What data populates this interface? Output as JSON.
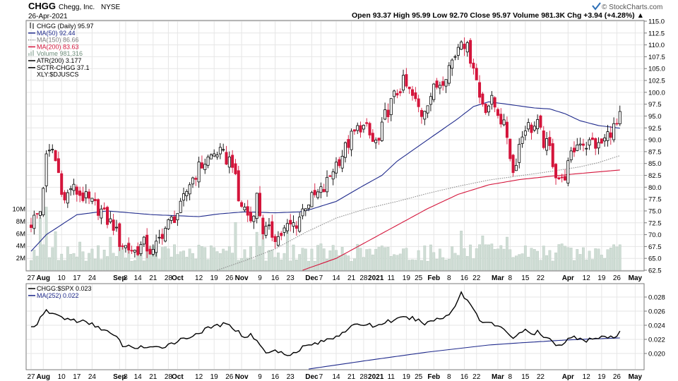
{
  "header": {
    "symbol": "CHGG",
    "company": "Chegg, Inc.",
    "exchange": "NYSE",
    "date": "26-Apr-2021",
    "brand": "© StockCharts.com",
    "quote": "Open 93.37  High 95.99  Low 92.70  Close 95.97  Volume 981.3K  Chg +3.94 (+4.28%) ▲"
  },
  "colors": {
    "up": "#000000",
    "down": "#d4153b",
    "ma50": "#1f2a8c",
    "ma150": "#8c8c8c",
    "ma200": "#d4153b",
    "volume": "#cfddd5",
    "rs": "#000000",
    "rs_ma": "#1f2a8c",
    "grid": "#e6e6e6",
    "border": "#7a7a7a"
  },
  "icons": {
    "brand": "stockcharts-checkmark-icon"
  },
  "legend": [
    {
      "text": "CHGG (Daily) 95.97",
      "icon": "candle-icon",
      "color": "#000000"
    },
    {
      "text": "MA(50) 92.44",
      "icon": "line-icon",
      "color": "#1f2a8c"
    },
    {
      "text": "MA(150) 86.66",
      "icon": "dotted-line-icon",
      "color": "#8c8c8c"
    },
    {
      "text": "MA(200) 83.63",
      "icon": "line-icon",
      "color": "#d4153b"
    },
    {
      "text": "Volume 981,316",
      "icon": "volume-bars-icon",
      "color": "#b9c9c0"
    },
    {
      "text": "ATR(200) 3.177",
      "icon": "line-icon",
      "color": "#000000"
    },
    {
      "text": "SCTR-CHGG 37.1",
      "icon": "line-icon",
      "color": "#000000"
    },
    {
      "text": "XLY:$DJUSCS",
      "icon": "",
      "color": "#000000"
    }
  ],
  "lower_legend": [
    {
      "text": "CHGG:$SPX 0.023",
      "icon": "line-icon",
      "color": "#000000"
    },
    {
      "text": "MA(252) 0.022",
      "icon": "line-icon",
      "color": "#1f2a8c"
    }
  ],
  "chart_data": [
    {
      "type": "candlestick",
      "title": "CHGG (Daily)",
      "ylim": [
        62.5,
        115.0
      ],
      "y_ticks": [
        "115.0",
        "112.5",
        "110.0",
        "107.5",
        "105.0",
        "102.5",
        "100.0",
        "97.5",
        "95.0",
        "92.5",
        "90.0",
        "87.5",
        "85.0",
        "82.5",
        "80.0",
        "77.5",
        "75.0",
        "72.5",
        "70.0",
        "67.5",
        "65.0",
        "62.5"
      ],
      "volume_ticks": [
        "10M",
        "8M",
        "6M",
        "4M",
        "2M"
      ],
      "volume_ylim": [
        0,
        13
      ],
      "x_ticks": [
        {
          "label": "27",
          "day": 0
        },
        {
          "label": "Aug",
          "day": 4,
          "bold": true
        },
        {
          "label": "10",
          "day": 10
        },
        {
          "label": "17",
          "day": 15
        },
        {
          "label": "24",
          "day": 20
        },
        {
          "label": "Sep",
          "day": 29,
          "bold": true
        },
        {
          "label": "8",
          "day": 31
        },
        {
          "label": "14",
          "day": 35
        },
        {
          "label": "21",
          "day": 40
        },
        {
          "label": "28",
          "day": 45
        },
        {
          "label": "Oct",
          "day": 48,
          "bold": true
        },
        {
          "label": "12",
          "day": 55
        },
        {
          "label": "19",
          "day": 60
        },
        {
          "label": "26",
          "day": 65
        },
        {
          "label": "Nov",
          "day": 69,
          "bold": true
        },
        {
          "label": "9",
          "day": 75
        },
        {
          "label": "16",
          "day": 80
        },
        {
          "label": "23",
          "day": 85
        },
        {
          "label": "Dec",
          "day": 92,
          "bold": true
        },
        {
          "label": "7",
          "day": 95
        },
        {
          "label": "14",
          "day": 100
        },
        {
          "label": "21",
          "day": 105
        },
        {
          "label": "28",
          "day": 109
        },
        {
          "label": "2021",
          "day": 113,
          "bold": true
        },
        {
          "label": "11",
          "day": 118
        },
        {
          "label": "19",
          "day": 123
        },
        {
          "label": "25",
          "day": 127
        },
        {
          "label": "Feb",
          "day": 132,
          "bold": true
        },
        {
          "label": "8",
          "day": 137
        },
        {
          "label": "16",
          "day": 142
        },
        {
          "label": "22",
          "day": 146
        },
        {
          "label": "Mar",
          "day": 153,
          "bold": true
        },
        {
          "label": "8",
          "day": 157
        },
        {
          "label": "15",
          "day": 162
        },
        {
          "label": "22",
          "day": 167
        },
        {
          "label": "Apr",
          "day": 176,
          "bold": true
        },
        {
          "label": "12",
          "day": 182
        },
        {
          "label": "19",
          "day": 187
        },
        {
          "label": "26",
          "day": 192
        },
        {
          "label": "May",
          "day": 198,
          "bold": true
        }
      ],
      "close_keyframes": [
        [
          0,
          72.5
        ],
        [
          3,
          75
        ],
        [
          5,
          86
        ],
        [
          7,
          88
        ],
        [
          9,
          83
        ],
        [
          11,
          77
        ],
        [
          13,
          80
        ],
        [
          15,
          79
        ],
        [
          17,
          78
        ],
        [
          20,
          76.5
        ],
        [
          23,
          75
        ],
        [
          25,
          73
        ],
        [
          27,
          72
        ],
        [
          29,
          68.5
        ],
        [
          31,
          67.5
        ],
        [
          34,
          66.5
        ],
        [
          37,
          68
        ],
        [
          40,
          66
        ],
        [
          43,
          70.5
        ],
        [
          46,
          73
        ],
        [
          49,
          75.5
        ],
        [
          52,
          81
        ],
        [
          55,
          84
        ],
        [
          58,
          86
        ],
        [
          61,
          87.5
        ],
        [
          64,
          86
        ],
        [
          66,
          85.5
        ],
        [
          68,
          77
        ],
        [
          70,
          75.5
        ],
        [
          72,
          73
        ],
        [
          74,
          78
        ],
        [
          76,
          71
        ],
        [
          78,
          70.5
        ],
        [
          81,
          69.5
        ],
        [
          84,
          71.5
        ],
        [
          87,
          72.5
        ],
        [
          90,
          76.5
        ],
        [
          93,
          78
        ],
        [
          96,
          79.5
        ],
        [
          99,
          84
        ],
        [
          102,
          87
        ],
        [
          105,
          90.5
        ],
        [
          108,
          93
        ],
        [
          110,
          92
        ],
        [
          112,
          89.5
        ],
        [
          114,
          89.5
        ],
        [
          116,
          95
        ],
        [
          119,
          99
        ],
        [
          122,
          102
        ],
        [
          125,
          99
        ],
        [
          128,
          95.5
        ],
        [
          130,
          98.5
        ],
        [
          132,
          100.5
        ],
        [
          135,
          103
        ],
        [
          137,
          105.5
        ],
        [
          139,
          108
        ],
        [
          141,
          112
        ],
        [
          143,
          109
        ],
        [
          145,
          106
        ],
        [
          147,
          99
        ],
        [
          149,
          97
        ],
        [
          151,
          98
        ],
        [
          153,
          96
        ],
        [
          156,
          91
        ],
        [
          158,
          83
        ],
        [
          160,
          89
        ],
        [
          162,
          93
        ],
        [
          164,
          92.5
        ],
        [
          166,
          93
        ],
        [
          168,
          89.5
        ],
        [
          170,
          88
        ],
        [
          172,
          83
        ],
        [
          174,
          81
        ],
        [
          176,
          84.5
        ],
        [
          178,
          88
        ],
        [
          180,
          90
        ],
        [
          182,
          89
        ],
        [
          184,
          89.5
        ],
        [
          186,
          88.5
        ],
        [
          188,
          90
        ],
        [
          190,
          92
        ],
        [
          192,
          93
        ],
        [
          193,
          95.97
        ]
      ],
      "vol_avg_millions": 3.2,
      "volume_spikes": [
        {
          "day": 3,
          "m": 8.5
        },
        {
          "day": 5,
          "m": 10.3
        },
        {
          "day": 8,
          "m": 6.3
        },
        {
          "day": 16,
          "m": 4.6
        },
        {
          "day": 26,
          "m": 5.4
        },
        {
          "day": 29,
          "m": 7.3
        },
        {
          "day": 32,
          "m": 4.5
        },
        {
          "day": 67,
          "m": 7.8
        },
        {
          "day": 74,
          "m": 6.2
        },
        {
          "day": 76,
          "m": 7.2
        },
        {
          "day": 84,
          "m": 6.9
        },
        {
          "day": 141,
          "m": 6.4
        },
        {
          "day": 148,
          "m": 5.6
        },
        {
          "day": 156,
          "m": 5.4
        },
        {
          "day": 173,
          "m": 4.2
        }
      ],
      "ma50_keyframes": [
        [
          0,
          66.5
        ],
        [
          5,
          70
        ],
        [
          15,
          74.2
        ],
        [
          25,
          75
        ],
        [
          40,
          74.2
        ],
        [
          55,
          73.8
        ],
        [
          62,
          74.4
        ],
        [
          70,
          74.8
        ],
        [
          80,
          74.6
        ],
        [
          88,
          74.8
        ],
        [
          92,
          75.4
        ],
        [
          100,
          77
        ],
        [
          108,
          80
        ],
        [
          115,
          82.5
        ],
        [
          120,
          85.5
        ],
        [
          130,
          90
        ],
        [
          140,
          94.5
        ],
        [
          145,
          97
        ],
        [
          150,
          98
        ],
        [
          156,
          97.5
        ],
        [
          165,
          96.7
        ],
        [
          170,
          96.5
        ],
        [
          175,
          95.5
        ],
        [
          180,
          94
        ],
        [
          186,
          93
        ],
        [
          193,
          92.44
        ]
      ],
      "ma150_keyframes": [
        [
          61,
          62.5
        ],
        [
          70,
          64.5
        ],
        [
          80,
          67
        ],
        [
          90,
          70.5
        ],
        [
          100,
          73.5
        ],
        [
          110,
          75.5
        ],
        [
          120,
          77
        ],
        [
          130,
          78.7
        ],
        [
          140,
          80.2
        ],
        [
          150,
          81.5
        ],
        [
          160,
          82.4
        ],
        [
          170,
          83.3
        ],
        [
          180,
          84.3
        ],
        [
          186,
          85.2
        ],
        [
          193,
          86.66
        ]
      ],
      "ma200_keyframes": [
        [
          89,
          62.5
        ],
        [
          100,
          65
        ],
        [
          110,
          68.5
        ],
        [
          120,
          72
        ],
        [
          130,
          75.5
        ],
        [
          140,
          78.5
        ],
        [
          150,
          80.5
        ],
        [
          160,
          81.6
        ],
        [
          170,
          82.3
        ],
        [
          180,
          82.9
        ],
        [
          193,
          83.63
        ]
      ]
    },
    {
      "type": "line",
      "title": "CHGG:$SPX",
      "ylim": [
        0.0178,
        0.0298
      ],
      "y_ticks": [
        "0.028",
        "0.026",
        "0.024",
        "0.022",
        "0.020"
      ],
      "series": [
        {
          "name": "CHGG:$SPX",
          "keyframes": [
            [
              0,
              0.0237
            ],
            [
              2,
              0.0243
            ],
            [
              5,
              0.026
            ],
            [
              8,
              0.0255
            ],
            [
              11,
              0.025
            ],
            [
              14,
              0.0247
            ],
            [
              17,
              0.0245
            ],
            [
              20,
              0.0241
            ],
            [
              23,
              0.0236
            ],
            [
              26,
              0.0228
            ],
            [
              28,
              0.0222
            ],
            [
              30,
              0.0212
            ],
            [
              33,
              0.0208
            ],
            [
              36,
              0.021
            ],
            [
              39,
              0.0207
            ],
            [
              42,
              0.0208
            ],
            [
              45,
              0.0213
            ],
            [
              48,
              0.0218
            ],
            [
              51,
              0.0222
            ],
            [
              54,
              0.0228
            ],
            [
              57,
              0.0233
            ],
            [
              60,
              0.0239
            ],
            [
              63,
              0.0241
            ],
            [
              66,
              0.0238
            ],
            [
              68,
              0.023
            ],
            [
              70,
              0.0224
            ],
            [
              72,
              0.0226
            ],
            [
              74,
              0.022
            ],
            [
              76,
              0.0205
            ],
            [
              78,
              0.02
            ],
            [
              80,
              0.0205
            ],
            [
              83,
              0.0199
            ],
            [
              86,
              0.0201
            ],
            [
              89,
              0.0209
            ],
            [
              92,
              0.0213
            ],
            [
              95,
              0.0216
            ],
            [
              98,
              0.0221
            ],
            [
              101,
              0.0227
            ],
            [
              104,
              0.0236
            ],
            [
              107,
              0.024
            ],
            [
              110,
              0.0242
            ],
            [
              113,
              0.0238
            ],
            [
              116,
              0.0245
            ],
            [
              119,
              0.0247
            ],
            [
              122,
              0.025
            ],
            [
              125,
              0.025
            ],
            [
              128,
              0.0244
            ],
            [
              130,
              0.0243
            ],
            [
              132,
              0.0248
            ],
            [
              135,
              0.025
            ],
            [
              137,
              0.0257
            ],
            [
              139,
              0.0268
            ],
            [
              141,
              0.0286
            ],
            [
              143,
              0.0275
            ],
            [
              145,
              0.0264
            ],
            [
              147,
              0.0248
            ],
            [
              150,
              0.0244
            ],
            [
              153,
              0.0238
            ],
            [
              156,
              0.0231
            ],
            [
              158,
              0.0222
            ],
            [
              160,
              0.023
            ],
            [
              162,
              0.0232
            ],
            [
              164,
              0.0227
            ],
            [
              166,
              0.023
            ],
            [
              168,
              0.0223
            ],
            [
              170,
              0.0219
            ],
            [
              172,
              0.0214
            ],
            [
              174,
              0.0213
            ],
            [
              176,
              0.022
            ],
            [
              178,
              0.0223
            ],
            [
              180,
              0.0222
            ],
            [
              182,
              0.0219
            ],
            [
              184,
              0.0222
            ],
            [
              186,
              0.022
            ],
            [
              188,
              0.0224
            ],
            [
              190,
              0.0222
            ],
            [
              192,
              0.0223
            ],
            [
              193,
              0.023
            ]
          ]
        },
        {
          "name": "MA(252)",
          "keyframes": [
            [
              91,
              0.0178
            ],
            [
              110,
              0.019
            ],
            [
              130,
              0.0202
            ],
            [
              150,
              0.0212
            ],
            [
              160,
              0.0215
            ],
            [
              175,
              0.0219
            ],
            [
              186,
              0.0221
            ],
            [
              193,
              0.0222
            ]
          ]
        }
      ]
    }
  ]
}
